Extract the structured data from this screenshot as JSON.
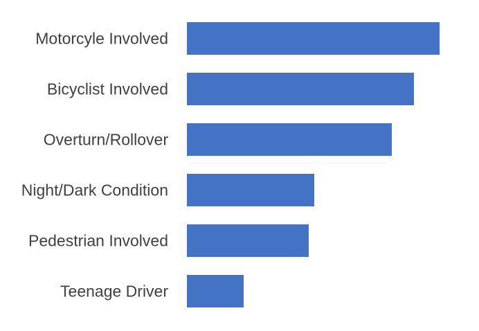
{
  "chart_data": {
    "type": "bar",
    "orientation": "horizontal",
    "title": "",
    "xlabel": "",
    "ylabel": "",
    "categories": [
      "Motorcyle Involved",
      "Bicyclist Involved",
      "Overturn/Rollover",
      "Night/Dark Condition",
      "Pedestrian Involved",
      "Teenage Driver"
    ],
    "values": [
      365,
      328,
      296,
      184,
      176,
      82
    ],
    "xlim": [
      0,
      365
    ],
    "grid": false,
    "legend": "none",
    "bar_color": "#4472C4",
    "label_color": "#404040"
  }
}
